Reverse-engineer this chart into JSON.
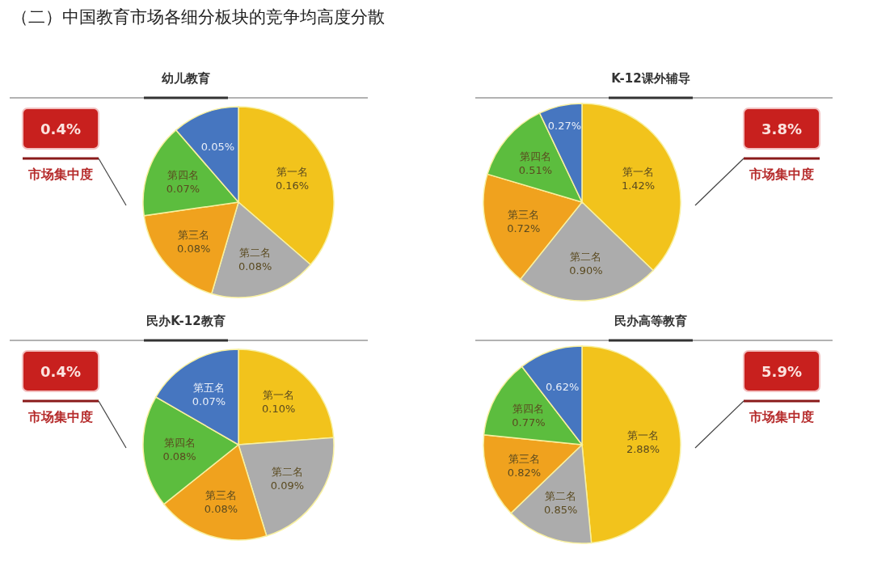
{
  "chart_data": [
    {
      "type": "pie",
      "title": "幼儿教育",
      "categories": [
        "第一名",
        "第二名",
        "第三名",
        "第四名",
        null
      ],
      "values": [
        0.16,
        0.08,
        0.08,
        0.07,
        0.05
      ],
      "value_labels": [
        "0.16%",
        "0.08%",
        "0.08%",
        "0.07%",
        "0.05%"
      ],
      "colors": [
        "#f2c31c",
        "#acacac",
        "#f0a21e",
        "#5cbd3e",
        "#4676c0"
      ],
      "annotations": [
        "（二）中国教育市场各细分板块的竞争均高度分散",
        "0.4%",
        "市场集中度"
      ]
    },
    {
      "type": "pie",
      "title": "K-12课外辅导",
      "categories": [
        "第一名",
        "第二名",
        "第三名",
        "第四名",
        null
      ],
      "values": [
        1.42,
        0.9,
        0.72,
        0.51,
        0.27
      ],
      "value_labels": [
        "1.42%",
        "0.90%",
        "0.72%",
        "0.51%",
        "0.27%"
      ],
      "colors": [
        "#f2c31c",
        "#acacac",
        "#f0a21e",
        "#5cbd3e",
        "#4676c0"
      ],
      "annotations": [
        "3.8%",
        "市场集中度"
      ]
    },
    {
      "type": "pie",
      "title": "民办K-12教育",
      "categories": [
        "第一名",
        "第二名",
        "第三名",
        "第四名",
        "第五名"
      ],
      "values": [
        0.1,
        0.09,
        0.08,
        0.08,
        0.07
      ],
      "value_labels": [
        "0.10%",
        "0.09%",
        "0.08%",
        "0.08%",
        "0.07%"
      ],
      "colors": [
        "#f2c31c",
        "#acacac",
        "#f0a21e",
        "#5cbd3e",
        "#4676c0"
      ],
      "annotations": [
        "0.4%",
        "市场集中度"
      ]
    },
    {
      "type": "pie",
      "title": "民办高等教育",
      "categories": [
        "第一名",
        "第二名",
        "第三名",
        "第四名",
        null
      ],
      "values": [
        2.88,
        0.85,
        0.82,
        0.77,
        0.62
      ],
      "value_labels": [
        "2.88%",
        "0.85%",
        "0.82%",
        "0.77%",
        "0.62%"
      ],
      "colors": [
        "#f2c31c",
        "#acacac",
        "#f0a21e",
        "#5cbd3e",
        "#4676c0"
      ],
      "annotations": [
        "5.9%",
        "市场集中度"
      ]
    }
  ]
}
